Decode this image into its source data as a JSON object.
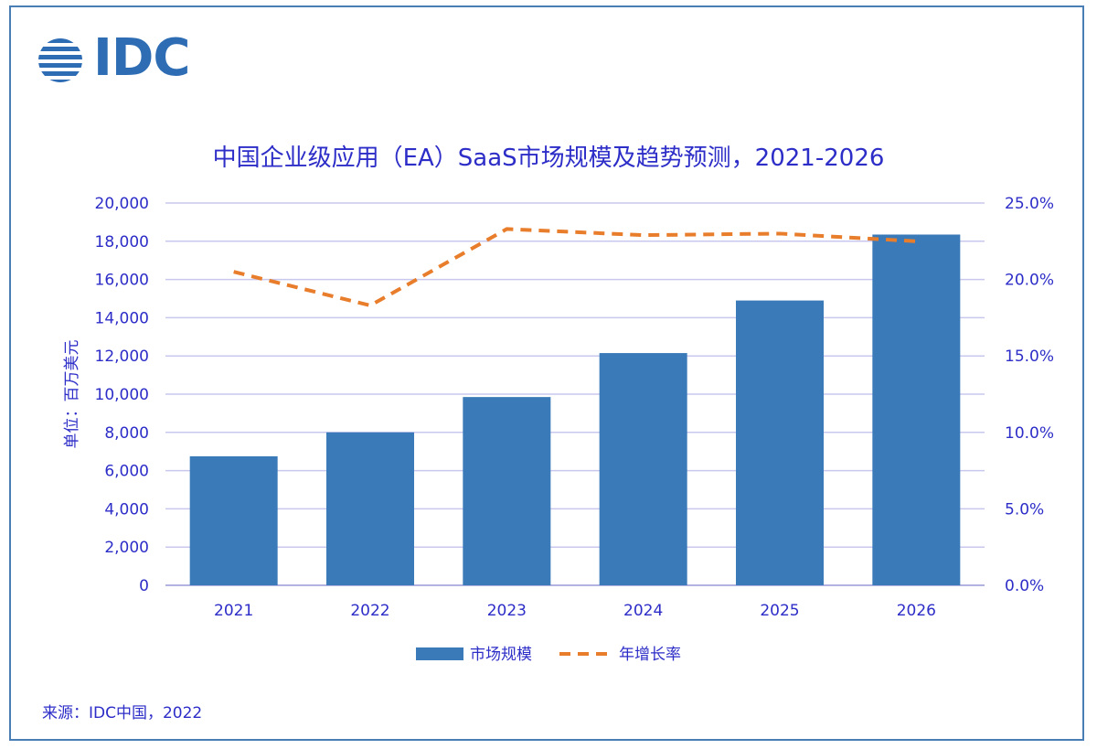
{
  "logo": {
    "text": "IDC"
  },
  "source": "来源：IDC中国，2022",
  "colors": {
    "bar": "#3a7ab9",
    "line": "#e87d2b",
    "text": "#2d2dc8",
    "grid": "#c8c8ee",
    "frame": "#4a7fb5"
  },
  "chart_data": {
    "type": "bar",
    "title": "中国企业级应用（EA）SaaS市场规模及趋势预测，2021-2026",
    "categories": [
      "2021",
      "2022",
      "2023",
      "2024",
      "2025",
      "2026"
    ],
    "ylabel": "单位：百万美元",
    "ylim": [
      0,
      20000
    ],
    "yticks": [
      "0",
      "2,000",
      "4,000",
      "6,000",
      "8,000",
      "10,000",
      "12,000",
      "14,000",
      "16,000",
      "18,000",
      "20,000"
    ],
    "y2lim": [
      0,
      25
    ],
    "y2ticks": [
      "0.0%",
      "5.0%",
      "10.0%",
      "15.0%",
      "20.0%",
      "25.0%"
    ],
    "grid": true,
    "legend_position": "bottom",
    "series": [
      {
        "name": "市场规模",
        "type": "bar",
        "axis": "left",
        "values": [
          6750,
          8000,
          9850,
          12150,
          14900,
          18350
        ]
      },
      {
        "name": "年增长率",
        "type": "line",
        "style": "dashed",
        "axis": "right",
        "values": [
          20.5,
          18.3,
          23.3,
          22.9,
          23.0,
          22.5
        ]
      }
    ]
  }
}
